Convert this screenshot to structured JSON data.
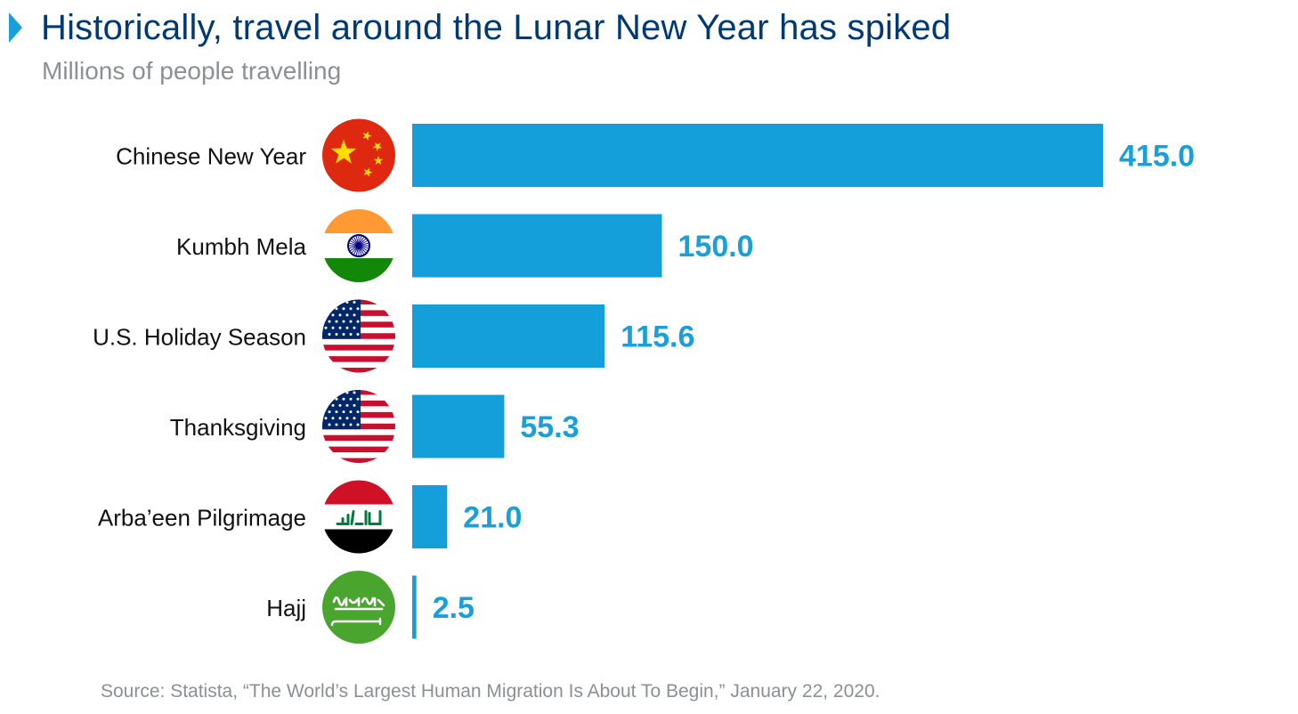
{
  "header": {
    "title": "Historically, travel around the Lunar New Year has spiked",
    "subtitle": "Millions of people travelling"
  },
  "footer": {
    "source": "Source: Statista, “The World’s Largest Human Migration Is About To Begin,” January 22, 2020."
  },
  "colors": {
    "bar": "#149fdb",
    "value_label": "#1a9fd9",
    "title": "#003a70",
    "subtitle": "#8c8f93"
  },
  "chart_data": {
    "type": "bar",
    "orientation": "horizontal",
    "title": "Historically, travel around the Lunar New Year has spiked",
    "subtitle": "Millions of people travelling",
    "categories": [
      "Chinese New Year",
      "Kumbh Mela",
      "U.S. Holiday Season",
      "Thanksgiving",
      "Arba’een Pilgrimage",
      "Hajj"
    ],
    "values": [
      415.0,
      150.0,
      115.6,
      55.3,
      21.0,
      2.5
    ],
    "value_labels": [
      "415.0",
      "150.0",
      "115.6",
      "55.3",
      "21.0",
      "2.5"
    ],
    "flag_icons": [
      "china-flag-icon",
      "india-flag-icon",
      "usa-flag-icon",
      "usa-flag-icon",
      "iraq-flag-icon",
      "saudi-arabia-flag-icon"
    ],
    "xlim": [
      0,
      415
    ],
    "grid": false,
    "legend": "none"
  }
}
